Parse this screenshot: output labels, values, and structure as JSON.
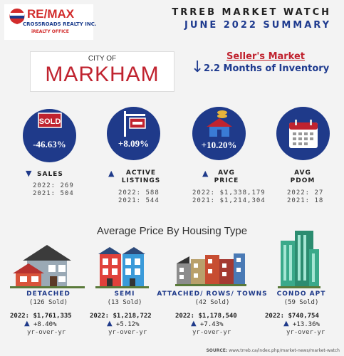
{
  "header": {
    "brand": "RE/MAX",
    "brokerage": "CROSSROADS REALTY INC.",
    "brokerage_sub": "iREALTY OFFICE",
    "title": "TRREB MARKET WATCH",
    "subtitle": "JUNE 2022 SUMMARY"
  },
  "city": {
    "prefix": "CITY OF",
    "name": "MARKHAM"
  },
  "market": {
    "status": "Seller's Market",
    "inventory": "2.2 Months of Inventory"
  },
  "stats": [
    {
      "pct": "-46.63%",
      "label": "SALES",
      "v2022": "2022: 269",
      "v2021": "2021: 504",
      "icon": "sold-sign-icon"
    },
    {
      "pct": "+8.09%",
      "label": "ACTIVE LISTINGS",
      "v2022": "2022: 588",
      "v2021": "2021: 544",
      "icon": "listing-sign-icon"
    },
    {
      "pct": "+10.20%",
      "label": "AVG PRICE",
      "v2022": "2022: $1,338,179",
      "v2021": "2021: $1,214,304",
      "icon": "house-coins-icon"
    },
    {
      "pct": "",
      "label": "AVG PDOM",
      "v2022": "2022: 27",
      "v2021": "2021: 18",
      "icon": "calendar-icon"
    }
  ],
  "section_title": "Average Price By Housing Type",
  "housing": [
    {
      "type": "DETACHED",
      "sold": "(126 Sold)",
      "price": "2022: $1,761,335",
      "change": "+8.40%",
      "yoy": "yr-over-yr"
    },
    {
      "type": "SEMI",
      "sold": "(13 Sold)",
      "price": "2022: $1,218,722",
      "change": "+5.12%",
      "yoy": "yr-over-yr"
    },
    {
      "type": "ATTACHED/ ROWS/ TOWNS",
      "sold": "(42 Sold)",
      "price": "2022: $1,178,540",
      "change": "+7.43%",
      "yoy": "yr-over-yr"
    },
    {
      "type": "CONDO APT",
      "sold": "(59 Sold)",
      "price": "2022: $740,754",
      "change": "+13.36%",
      "yoy": "yr-over-yr"
    }
  ],
  "source": {
    "label": "SOURCE:",
    "url": "www.trreb.ca/index.php/market-news/market-watch"
  },
  "colors": {
    "navy": "#1f3a8a",
    "red": "#c0232f",
    "background": "#f3f3f3"
  }
}
